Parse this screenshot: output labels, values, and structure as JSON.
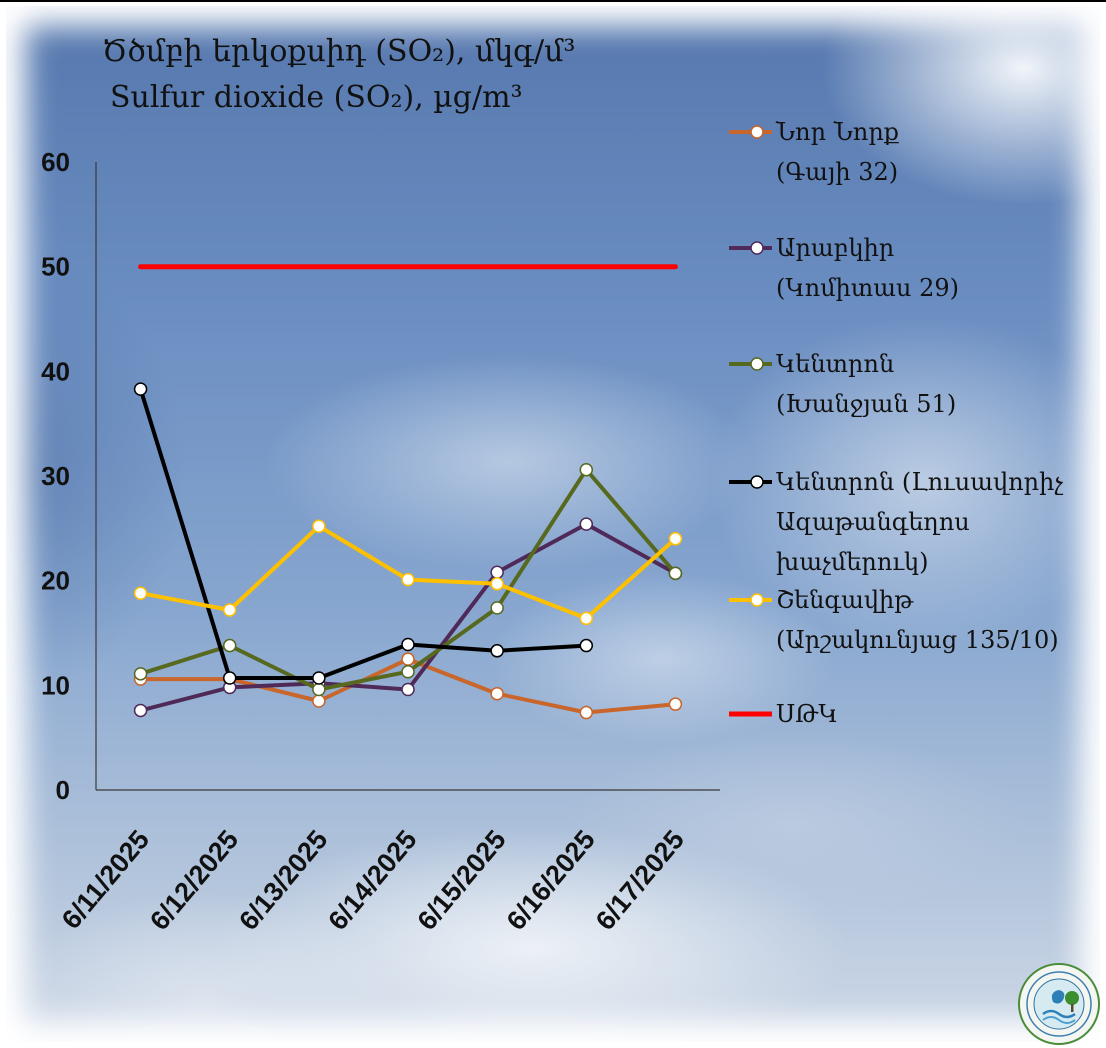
{
  "chart_data": {
    "type": "line",
    "title": "Ծծմբի երկօքսիդ (SO₂), մկգ/մ³",
    "subtitle": "Sulfur dioxide (SO₂), µg/m³",
    "xlabel": "",
    "ylabel": "",
    "categories": [
      "6/11/2025",
      "6/12/2025",
      "6/13/2025",
      "6/14/2025",
      "6/15/2025",
      "6/16/2025",
      "6/17/2025"
    ],
    "ylim": [
      0,
      60
    ],
    "yticks": [
      0,
      10,
      20,
      30,
      40,
      50,
      60
    ],
    "grid": false,
    "legend_position": "right",
    "series": [
      {
        "name": "Նոր Նորք\n(Գայի 32)",
        "color": "#c8662c",
        "marker": "circle",
        "values": [
          10.6,
          10.6,
          8.5,
          12.5,
          9.2,
          7.4,
          8.2
        ]
      },
      {
        "name": "Արաբկիր\n(Կոմիտաս 29)",
        "color": "#4f2a59",
        "marker": "circle",
        "values": [
          7.6,
          9.8,
          10.2,
          9.6,
          20.8,
          25.4,
          20.7
        ]
      },
      {
        "name": "Կենտրոն\n(Խանջյան 51)",
        "color": "#56691f",
        "marker": "circle",
        "values": [
          11.1,
          13.8,
          9.6,
          11.3,
          17.4,
          30.6,
          20.7
        ]
      },
      {
        "name": "Կենտրոն (Լուսավորիչ\nԱզաթանգեղոս\nխաչմերուկ)",
        "color": "#000000",
        "marker": "circle",
        "values": [
          38.3,
          10.7,
          10.7,
          13.9,
          13.3,
          13.8,
          null
        ]
      },
      {
        "name": "Շենգավիթ\n(Արշակունյաց 135/10)",
        "color": "#ffc000",
        "marker": "circle",
        "values": [
          18.8,
          17.2,
          25.2,
          20.1,
          19.7,
          16.4,
          24.0
        ]
      },
      {
        "name": "ՍԹԿ",
        "color": "#ff0000",
        "marker": "none",
        "values": [
          50,
          50,
          50,
          50,
          50,
          50,
          50
        ]
      }
    ]
  },
  "logo": {
    "icon": "environmental-monitoring-emblem-icon"
  }
}
